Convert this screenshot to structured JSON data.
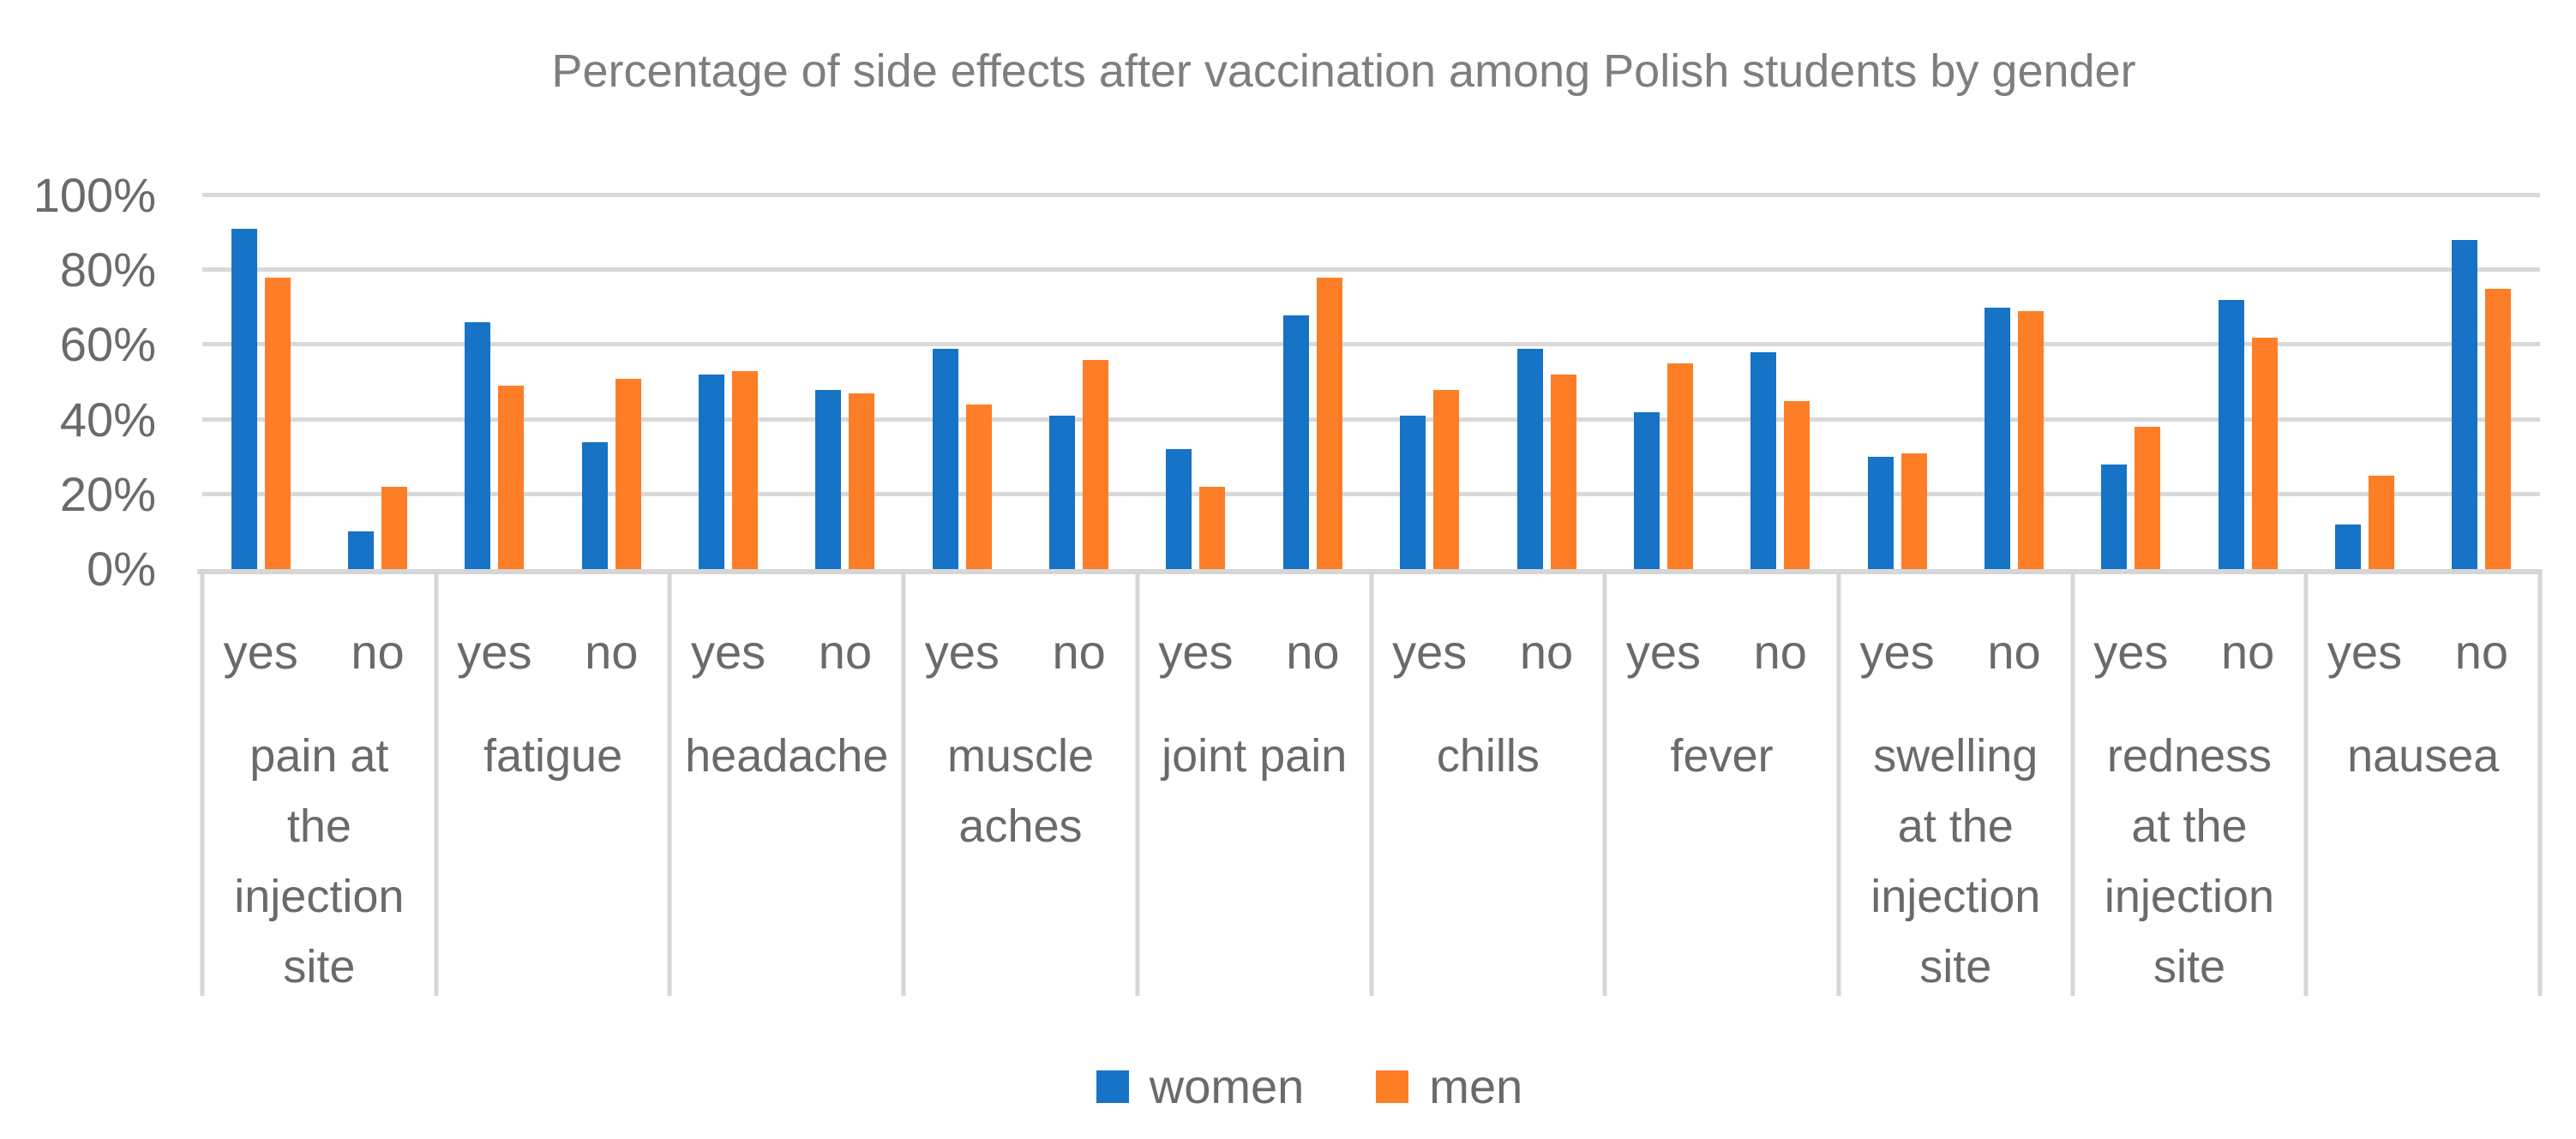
{
  "chart_data": {
    "type": "bar",
    "title": "Percentage of side effects after vaccination among Polish students by gender",
    "y_axis": {
      "min": 0,
      "max": 100,
      "tick_step": 20,
      "tick_labels": [
        "0%",
        "20%",
        "40%",
        "60%",
        "80%",
        "100%"
      ],
      "format": "percent"
    },
    "grid": true,
    "legend_position": "bottom",
    "categories": [
      "pain at the injection site",
      "fatigue",
      "headache",
      "muscle aches",
      "joint pain",
      "chills",
      "fever",
      "swelling at the injection site",
      "redness at the injection site",
      "nausea"
    ],
    "category_label_lines": [
      [
        "pain at",
        "the",
        "injection",
        "site"
      ],
      [
        "fatigue"
      ],
      [
        "headache"
      ],
      [
        "muscle",
        "aches"
      ],
      [
        "joint pain"
      ],
      [
        "chills"
      ],
      [
        "fever"
      ],
      [
        "swelling",
        "at the",
        "injection",
        "site"
      ],
      [
        "redness",
        "at the",
        "injection",
        "site"
      ],
      [
        "nausea"
      ]
    ],
    "subcategories": [
      "yes",
      "no"
    ],
    "series": [
      {
        "name": "women",
        "color": "#1673C6",
        "values": {
          "yes": [
            91,
            66,
            52,
            59,
            32,
            41,
            42,
            30,
            28,
            12
          ],
          "no": [
            10,
            34,
            48,
            41,
            68,
            59,
            58,
            70,
            72,
            88
          ]
        }
      },
      {
        "name": "men",
        "color": "#FD7E26",
        "values": {
          "yes": [
            78,
            49,
            53,
            44,
            22,
            48,
            55,
            31,
            38,
            25
          ],
          "no": [
            22,
            51,
            47,
            56,
            78,
            52,
            45,
            69,
            62,
            75
          ]
        }
      }
    ],
    "colors": {
      "gridline": "#D9D9D9",
      "axis_line": "#D6D6D6",
      "label_text": "#6A6A6A",
      "title_text": "#7E7E7E"
    }
  }
}
